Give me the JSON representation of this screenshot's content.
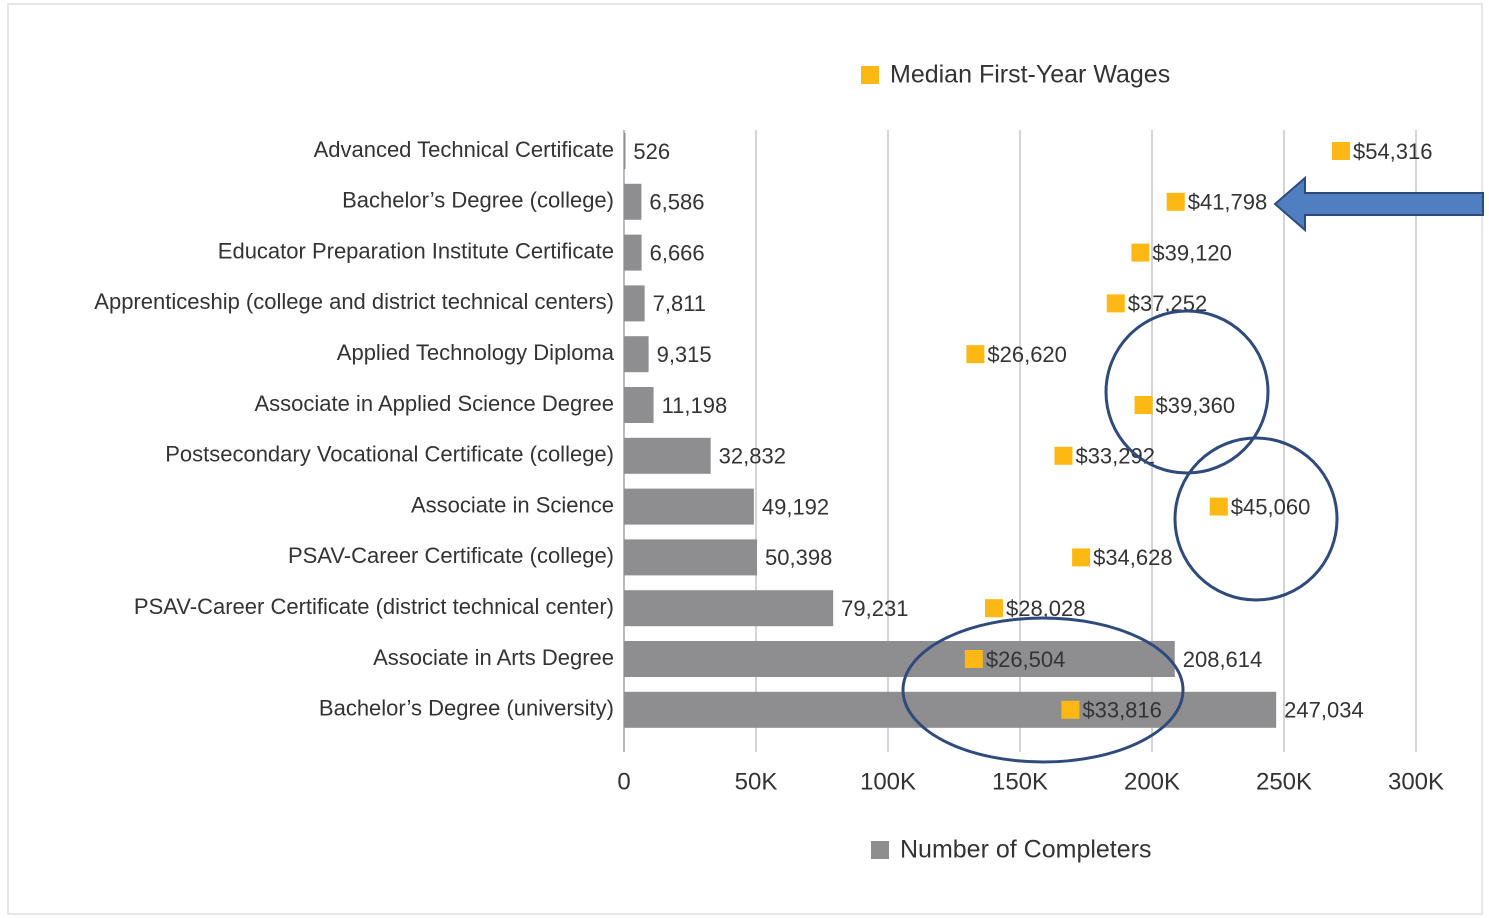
{
  "chart_data": {
    "type": "bar",
    "orientation": "horizontal",
    "categories": [
      "Advanced Technical Certificate",
      "Bachelor’s Degree (college)",
      "Educator Preparation Institute Certificate",
      "Apprenticeship (college and district technical centers)",
      "Applied Technology Diploma",
      "Associate in Applied Science Degree",
      "Postsecondary Vocational Certificate (college)",
      "Associate in Science",
      "PSAV-Career  Certificate (college)",
      "PSAV-Career  Certificate (district technical center)",
      "Associate in Arts Degree",
      "Bachelor’s Degree (university)"
    ],
    "series": [
      {
        "name": "Number of Completers",
        "color": "#8e8e90",
        "values": [
          526,
          6586,
          6666,
          7811,
          9315,
          11198,
          32832,
          49192,
          50398,
          79231,
          208614,
          247034
        ],
        "value_labels": [
          "526",
          "6,586",
          "6,666",
          "7,811",
          "9,315",
          "11,198",
          "32,832",
          "49,192",
          "50,398",
          "79,231",
          "208,614",
          "247,034"
        ]
      },
      {
        "name": "Median First-Year Wages",
        "color": "#fdb813",
        "type": "scatter",
        "axis": "x2",
        "values": [
          54316,
          41798,
          39120,
          37252,
          26620,
          39360,
          33292,
          45060,
          34628,
          28028,
          26504,
          33816
        ],
        "value_labels": [
          "$54,316",
          "$41,798",
          "$39,120",
          "$37,252",
          "$26,620",
          "$39,360",
          "$33,292",
          "$45,060",
          "$34,628",
          "$28,028",
          "$26,504",
          "$33,816"
        ]
      }
    ],
    "xlim": [
      0,
      300000
    ],
    "xticks": [
      0,
      {
        "value": 50000,
        "label": "50K"
      },
      {
        "value": 100000,
        "label": "100K"
      },
      {
        "value": 150000,
        "label": "150K"
      },
      {
        "value": 200000,
        "label": "200K"
      },
      {
        "value": 250000,
        "label": "250K"
      },
      {
        "value": 300000,
        "label": "300K"
      }
    ],
    "x2lim": [
      0,
      60000
    ],
    "grid": true
  }
}
